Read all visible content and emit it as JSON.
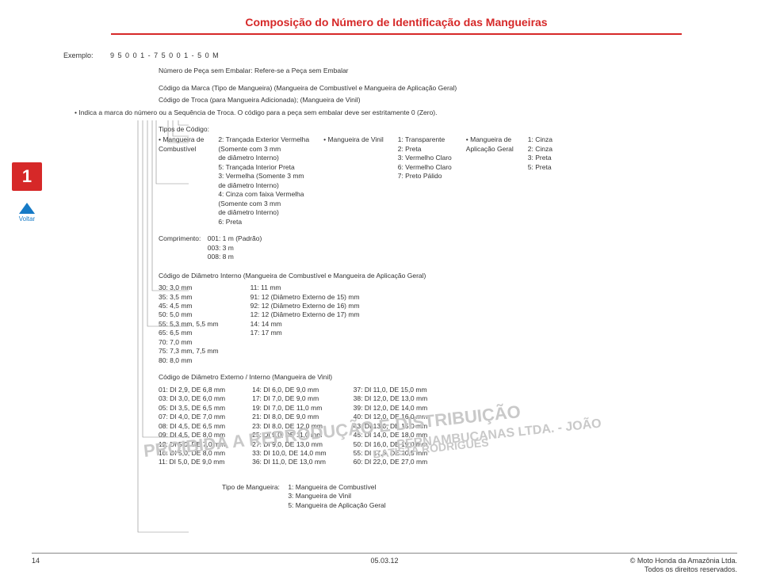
{
  "title": "Composição do Número de Identificação das Mangueiras",
  "example": {
    "label": "Exemplo:",
    "code": "9 5 0 0 1 - 7 5 0 0 1 - 5 0 M"
  },
  "line1": "Número de Peça sem Embalar: Refere-se a Peça sem Embalar",
  "line2": "Código da Marca (Tipo de Mangueira) (Mangueira de Combustível e Mangueira de Aplicação Geral)",
  "line3": "Código de Troca (para Mangueira Adicionada); (Mangueira de Vinil)",
  "line4": "• Indica a marca do número ou a Sequência de Troca. O código para a peça sem embalar deve ser estritamente 0 (Zero).",
  "tipos_header": "Tipos de Código:",
  "col1_h": "• Mangueira de\nCombustível",
  "col1": [
    "2: Trançada Exterior Vermelha",
    "(Somente com 3 mm",
    "de diâmetro Interno)",
    "5: Trançada Interior Preta",
    "3: Vermelha (Somente 3 mm",
    "de diâmetro Interno)",
    "4: Cinza com faixa Vermelha",
    "(Somente com 3 mm",
    "de diâmetro Interno)",
    "6: Preta"
  ],
  "col2_h": "• Mangueira de Vinil",
  "col2": [
    "1: Transparente",
    "2: Preta",
    "3: Vermelho Claro",
    "6: Vermelho Claro",
    "7: Preto Pálido"
  ],
  "col3_h": "• Mangueira de\nAplicação Geral",
  "col3": [
    "1: Cinza",
    "2: Cinza",
    "3: Preta",
    "5: Preta"
  ],
  "comprimento_h": "Comprimento:",
  "comprimento": [
    "001: 1 m (Padrão)",
    "003: 3 m",
    "008: 8 m"
  ],
  "diam_h": "Código de Diâmetro Interno (Mangueira de Combustível e Mangueira de Aplicação Geral)",
  "diam_c1": [
    "30: 3,0 mm",
    "35: 3,5 mm",
    "45: 4,5 mm",
    "50: 5,0 mm",
    "55: 5,3 mm, 5,5 mm",
    "65: 6,5 mm",
    "70: 7,0 mm",
    "75: 7,3 mm, 7,5 mm",
    "80: 8,0 mm"
  ],
  "diam_c2": [
    "11: 11 mm",
    "91: 12 (Diâmetro Externo de 15) mm",
    "92: 12 (Diâmetro Externo de 16) mm",
    "12: 12 (Diâmetro Externo de 17) mm",
    "14: 14 mm",
    "17: 17 mm"
  ],
  "vinil_h": "Código de Diâmetro Externo / Interno (Mangueira de Vinil)",
  "vinil_c1": [
    "01: DI 2,9, DE 6,8 mm",
    "03: DI 3,0, DE 6,0 mm",
    "05: DI 3,5, DE 6,5 mm",
    "07: DI 4,0, DE 7,0 mm",
    "08: DI 4,5, DE 6,5 mm",
    "09: DI 4,5, DE 8,0 mm",
    "12: DI 5,0, DE 7,0 mm",
    "10: DI 5,0, DE 8,0 mm",
    "11: DI 5,0, DE 9,0 mm"
  ],
  "vinil_c2": [
    "14: DI 6,0, DE 9,0 mm",
    "17: DI 7,0, DE 9,0 mm",
    "19: DI 7,0, DE 11,0 mm",
    "21: DI 8,0, DE 9,0 mm",
    "23: DI 8,0, DE 12,0 mm",
    "25: DI 9,0, DE 11,0 mm",
    "27: DI 9,0, DE 13,0 mm",
    "33: DI 10,0, DE 14,0 mm",
    "36: DI 11,0, DE 13,0 mm"
  ],
  "vinil_c3": [
    "37: DI 11,0, DE 15,0 mm",
    "38: DI 12,0, DE 13,0 mm",
    "39: DI 12,0, DE 14,0 mm",
    "40: DI 12,0, DE 16,0 mm",
    "43: DI 13,0, DE 15,0 mm",
    "45: DI 14,0, DE 18,0 mm",
    "50: DI 16,0, DE 19,0 mm",
    "55: DI 17,5, DE 20,5 mm",
    "60: DI 22,0, DE 27,0 mm"
  ],
  "tipo_h": "Tipo de Mangueira:",
  "tipo": [
    "1: Mangueira de Combustível",
    "3: Mangueira de Vinil",
    "5: Mangueira de Aplicação Geral"
  ],
  "wm1": "PROIBIDA A REPRODUÇÃO E DISTRIBUIÇÃO",
  "wm2": "PERNAMBUCANAS LTDA. - JOÃO",
  "wm3": "BATISTA RODRIGUES",
  "voltar": "Voltar",
  "page_num": "14",
  "foot_center": "05.03.12",
  "foot_right1": "© Moto Honda da Amazônia Ltda.",
  "foot_right2": "Todos os direitos reservados.",
  "sidebar_num": "1",
  "colors": {
    "red": "#d62828",
    "link": "#167ac6",
    "wm": "#c9c9c9"
  }
}
